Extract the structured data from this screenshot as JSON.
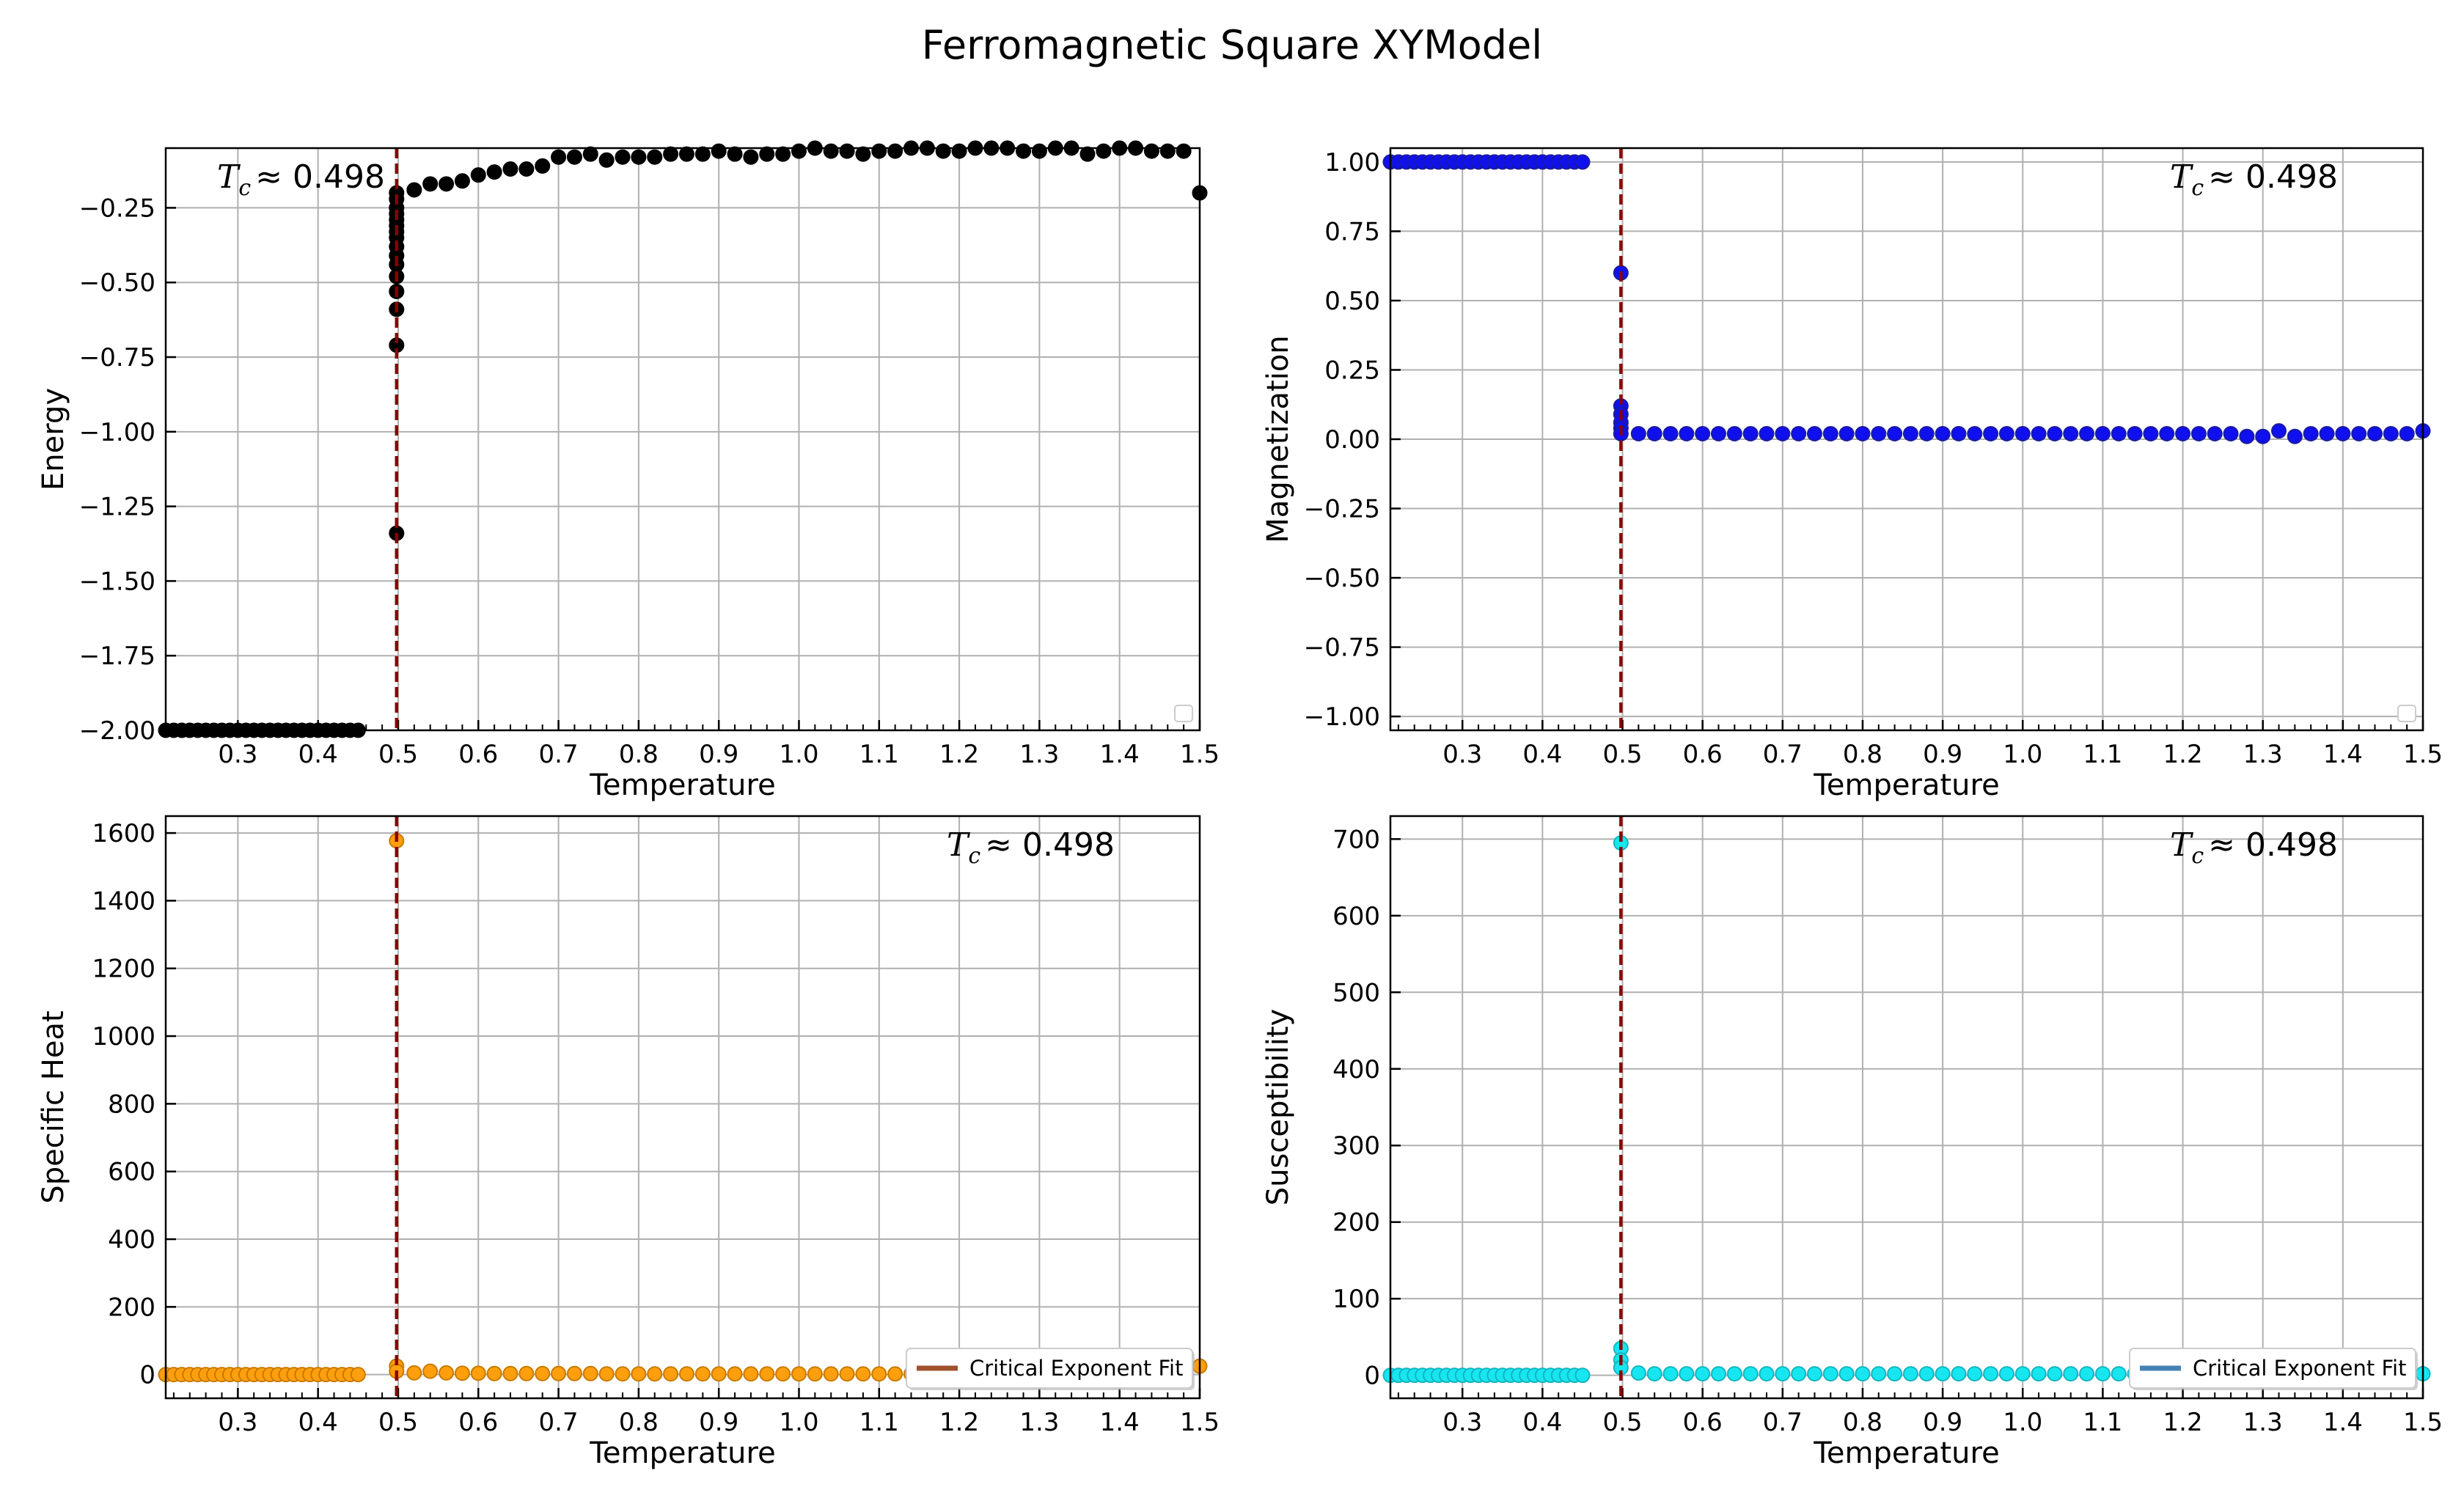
{
  "figure": {
    "title": "Ferromagnetic Square XYModel"
  },
  "chart_data": [
    {
      "type": "scatter",
      "id": "energy",
      "xlabel": "Temperature",
      "ylabel": "Energy",
      "xlim": [
        0.21,
        1.5
      ],
      "ylim": [
        -2.0,
        -0.05
      ],
      "xticks": [
        0.3,
        0.4,
        0.5,
        0.6,
        0.7,
        0.8,
        0.9,
        1.0,
        1.1,
        1.2,
        1.3,
        1.4,
        1.5
      ],
      "xtick_labels": [
        "0.3",
        "0.4",
        "0.5",
        "0.6",
        "0.7",
        "0.8",
        "0.9",
        "1.0",
        "1.1",
        "1.2",
        "1.3",
        "1.4",
        "1.5"
      ],
      "yticks": [
        -2.0,
        -1.75,
        -1.5,
        -1.25,
        -1.0,
        -0.75,
        -0.5,
        -0.25
      ],
      "ytick_labels": [
        "−2.00",
        "−1.75",
        "−1.50",
        "−1.25",
        "−1.00",
        "−0.75",
        "−0.50",
        "−0.25"
      ],
      "grid": true,
      "tc_line": 0.498,
      "annotation": {
        "prefix": "T",
        "sub": "c",
        "text": "≈  0.498",
        "placement": "top-left"
      },
      "legend": {
        "placement": "bottom-right",
        "entries": []
      },
      "marker_color": "#000000",
      "marker_edge": "#000000",
      "series": [
        {
          "x": [
            0.21,
            0.22,
            0.23,
            0.24,
            0.25,
            0.26,
            0.27,
            0.28,
            0.29,
            0.3,
            0.31,
            0.32,
            0.33,
            0.34,
            0.35,
            0.36,
            0.37,
            0.38,
            0.39,
            0.4,
            0.41,
            0.42,
            0.43,
            0.44,
            0.45,
            0.498,
            0.498,
            0.498,
            0.498,
            0.498,
            0.498,
            0.498,
            0.498,
            0.498,
            0.498,
            0.498,
            0.498,
            0.498,
            0.498,
            0.498,
            0.498,
            0.52,
            0.54,
            0.56,
            0.58,
            0.6,
            0.62,
            0.64,
            0.66,
            0.68,
            0.7,
            0.72,
            0.74,
            0.76,
            0.78,
            0.8,
            0.82,
            0.84,
            0.86,
            0.88,
            0.9,
            0.92,
            0.94,
            0.96,
            0.98,
            1.0,
            1.02,
            1.04,
            1.06,
            1.08,
            1.1,
            1.12,
            1.14,
            1.16,
            1.18,
            1.2,
            1.22,
            1.24,
            1.26,
            1.28,
            1.3,
            1.32,
            1.34,
            1.36,
            1.38,
            1.4,
            1.42,
            1.44,
            1.46,
            1.48,
            1.5
          ],
          "y": [
            -2.0,
            -2.0,
            -2.0,
            -2.0,
            -2.0,
            -2.0,
            -2.0,
            -2.0,
            -2.0,
            -2.0,
            -2.0,
            -2.0,
            -2.0,
            -2.0,
            -2.0,
            -2.0,
            -2.0,
            -2.0,
            -2.0,
            -2.0,
            -2.0,
            -2.0,
            -2.0,
            -2.0,
            -2.0,
            -1.34,
            -0.71,
            -0.59,
            -0.53,
            -0.48,
            -0.44,
            -0.41,
            -0.38,
            -0.35,
            -0.33,
            -0.31,
            -0.29,
            -0.27,
            -0.25,
            -0.22,
            -0.2,
            -0.19,
            -0.17,
            -0.17,
            -0.16,
            -0.14,
            -0.13,
            -0.12,
            -0.12,
            -0.11,
            -0.08,
            -0.08,
            -0.07,
            -0.09,
            -0.08,
            -0.08,
            -0.08,
            -0.07,
            -0.07,
            -0.07,
            -0.06,
            -0.07,
            -0.08,
            -0.07,
            -0.07,
            -0.06,
            -0.05,
            -0.06,
            -0.06,
            -0.07,
            -0.06,
            -0.06,
            -0.05,
            -0.05,
            -0.06,
            -0.06,
            -0.05,
            -0.05,
            -0.05,
            -0.06,
            -0.06,
            -0.05,
            -0.05,
            -0.07,
            -0.06,
            -0.05,
            -0.05,
            -0.06,
            -0.06,
            -0.06,
            -0.2
          ]
        }
      ]
    },
    {
      "type": "scatter",
      "id": "magnetization",
      "xlabel": "Temperature",
      "ylabel": "Magnetization",
      "xlim": [
        0.21,
        1.5
      ],
      "ylim": [
        -1.05,
        1.05
      ],
      "xticks": [
        0.3,
        0.4,
        0.5,
        0.6,
        0.7,
        0.8,
        0.9,
        1.0,
        1.1,
        1.2,
        1.3,
        1.4,
        1.5
      ],
      "xtick_labels": [
        "0.3",
        "0.4",
        "0.5",
        "0.6",
        "0.7",
        "0.8",
        "0.9",
        "1.0",
        "1.1",
        "1.2",
        "1.3",
        "1.4",
        "1.5"
      ],
      "yticks": [
        -1.0,
        -0.75,
        -0.5,
        -0.25,
        0.0,
        0.25,
        0.5,
        0.75,
        1.0
      ],
      "ytick_labels": [
        "−1.00",
        "−0.75",
        "−0.50",
        "−0.25",
        "0.00",
        "0.25",
        "0.50",
        "0.75",
        "1.00"
      ],
      "grid": true,
      "tc_line": 0.498,
      "annotation": {
        "prefix": "T",
        "sub": "c",
        "text": "≈  0.498",
        "placement": "top-right"
      },
      "legend": {
        "placement": "bottom-right",
        "entries": []
      },
      "marker_color": "#1010ee",
      "marker_edge": "#1a1aa0",
      "series": [
        {
          "x": [
            0.21,
            0.22,
            0.23,
            0.24,
            0.25,
            0.26,
            0.27,
            0.28,
            0.29,
            0.3,
            0.31,
            0.32,
            0.33,
            0.34,
            0.35,
            0.36,
            0.37,
            0.38,
            0.39,
            0.4,
            0.41,
            0.42,
            0.43,
            0.44,
            0.45,
            0.498,
            0.498,
            0.498,
            0.498,
            0.498,
            0.498,
            0.52,
            0.54,
            0.56,
            0.58,
            0.6,
            0.62,
            0.64,
            0.66,
            0.68,
            0.7,
            0.72,
            0.74,
            0.76,
            0.78,
            0.8,
            0.82,
            0.84,
            0.86,
            0.88,
            0.9,
            0.92,
            0.94,
            0.96,
            0.98,
            1.0,
            1.02,
            1.04,
            1.06,
            1.08,
            1.1,
            1.12,
            1.14,
            1.16,
            1.18,
            1.2,
            1.22,
            1.24,
            1.26,
            1.28,
            1.3,
            1.32,
            1.34,
            1.36,
            1.38,
            1.4,
            1.42,
            1.44,
            1.46,
            1.48,
            1.5
          ],
          "y": [
            1.0,
            1.0,
            1.0,
            1.0,
            1.0,
            1.0,
            1.0,
            1.0,
            1.0,
            1.0,
            1.0,
            1.0,
            1.0,
            1.0,
            1.0,
            1.0,
            1.0,
            1.0,
            1.0,
            1.0,
            1.0,
            1.0,
            1.0,
            1.0,
            1.0,
            0.6,
            0.12,
            0.09,
            0.06,
            0.04,
            0.02,
            0.02,
            0.02,
            0.02,
            0.02,
            0.02,
            0.02,
            0.02,
            0.02,
            0.02,
            0.02,
            0.02,
            0.02,
            0.02,
            0.02,
            0.02,
            0.02,
            0.02,
            0.02,
            0.02,
            0.02,
            0.02,
            0.02,
            0.02,
            0.02,
            0.02,
            0.02,
            0.02,
            0.02,
            0.02,
            0.02,
            0.02,
            0.02,
            0.02,
            0.02,
            0.02,
            0.02,
            0.02,
            0.02,
            0.01,
            0.01,
            0.03,
            0.01,
            0.02,
            0.02,
            0.02,
            0.02,
            0.02,
            0.02,
            0.02,
            0.03
          ]
        }
      ]
    },
    {
      "type": "scatter",
      "id": "specific-heat",
      "xlabel": "Temperature",
      "ylabel": "Specific Heat",
      "xlim": [
        0.21,
        1.5
      ],
      "ylim": [
        -70,
        1650
      ],
      "xticks": [
        0.3,
        0.4,
        0.5,
        0.6,
        0.7,
        0.8,
        0.9,
        1.0,
        1.1,
        1.2,
        1.3,
        1.4,
        1.5
      ],
      "xtick_labels": [
        "0.3",
        "0.4",
        "0.5",
        "0.6",
        "0.7",
        "0.8",
        "0.9",
        "1.0",
        "1.1",
        "1.2",
        "1.3",
        "1.4",
        "1.5"
      ],
      "yticks": [
        0,
        200,
        400,
        600,
        800,
        1000,
        1200,
        1400,
        1600
      ],
      "ytick_labels": [
        "0",
        "200",
        "400",
        "600",
        "800",
        "1000",
        "1200",
        "1400",
        "1600"
      ],
      "grid": true,
      "tc_line": 0.498,
      "annotation": {
        "prefix": "T",
        "sub": "c",
        "text": "≈  0.498",
        "placement": "top-right"
      },
      "legend": {
        "placement": "bottom-right",
        "entries": [
          {
            "label": "Critical Exponent Fit",
            "color": "#a0522d"
          }
        ]
      },
      "marker_color": "#ff9f0e",
      "marker_edge": "#c77a00",
      "series": [
        {
          "x": [
            0.21,
            0.22,
            0.23,
            0.24,
            0.25,
            0.26,
            0.27,
            0.28,
            0.29,
            0.3,
            0.31,
            0.32,
            0.33,
            0.34,
            0.35,
            0.36,
            0.37,
            0.38,
            0.39,
            0.4,
            0.41,
            0.42,
            0.43,
            0.44,
            0.45,
            0.498,
            0.498,
            0.498,
            0.52,
            0.54,
            0.56,
            0.58,
            0.6,
            0.62,
            0.64,
            0.66,
            0.68,
            0.7,
            0.72,
            0.74,
            0.76,
            0.78,
            0.8,
            0.82,
            0.84,
            0.86,
            0.88,
            0.9,
            0.92,
            0.94,
            0.96,
            0.98,
            1.0,
            1.02,
            1.04,
            1.06,
            1.08,
            1.1,
            1.12,
            1.14,
            1.16,
            1.18,
            1.2,
            1.22,
            1.24,
            1.26,
            1.28,
            1.3,
            1.32,
            1.34,
            1.36,
            1.38,
            1.4,
            1.42,
            1.44,
            1.46,
            1.48,
            1.5
          ],
          "y": [
            0,
            0,
            0,
            0,
            0,
            0,
            0,
            0,
            0,
            0,
            0,
            0,
            0,
            0,
            0,
            0,
            0,
            0,
            0,
            0,
            0,
            0,
            0,
            0,
            0,
            1577,
            25,
            10,
            5,
            10,
            5,
            4,
            4,
            3,
            3,
            3,
            3,
            3,
            3,
            3,
            2,
            2,
            2,
            2,
            2,
            2,
            2,
            2,
            2,
            2,
            2,
            2,
            2,
            2,
            2,
            2,
            2,
            2,
            2,
            2,
            2,
            2,
            2,
            2,
            2,
            2,
            2,
            2,
            2,
            2,
            2,
            2,
            2,
            2,
            2,
            2,
            2,
            25
          ]
        }
      ]
    },
    {
      "type": "scatter",
      "id": "susceptibility",
      "xlabel": "Temperature",
      "ylabel": "Susceptibility",
      "xlim": [
        0.21,
        1.5
      ],
      "ylim": [
        -30,
        730
      ],
      "xticks": [
        0.3,
        0.4,
        0.5,
        0.6,
        0.7,
        0.8,
        0.9,
        1.0,
        1.1,
        1.2,
        1.3,
        1.4,
        1.5
      ],
      "xtick_labels": [
        "0.3",
        "0.4",
        "0.5",
        "0.6",
        "0.7",
        "0.8",
        "0.9",
        "1.0",
        "1.1",
        "1.2",
        "1.3",
        "1.4",
        "1.5"
      ],
      "yticks": [
        0,
        100,
        200,
        300,
        400,
        500,
        600,
        700
      ],
      "ytick_labels": [
        "0",
        "100",
        "200",
        "300",
        "400",
        "500",
        "600",
        "700"
      ],
      "grid": true,
      "tc_line": 0.498,
      "annotation": {
        "prefix": "T",
        "sub": "c",
        "text": "≈  0.498",
        "placement": "top-right"
      },
      "legend": {
        "placement": "bottom-right",
        "entries": [
          {
            "label": "Critical Exponent Fit",
            "color": "#4682b4"
          }
        ]
      },
      "marker_color": "#17e6f0",
      "marker_edge": "#14b5c0",
      "series": [
        {
          "x": [
            0.21,
            0.22,
            0.23,
            0.24,
            0.25,
            0.26,
            0.27,
            0.28,
            0.29,
            0.3,
            0.31,
            0.32,
            0.33,
            0.34,
            0.35,
            0.36,
            0.37,
            0.38,
            0.39,
            0.4,
            0.41,
            0.42,
            0.43,
            0.44,
            0.45,
            0.498,
            0.498,
            0.498,
            0.498,
            0.52,
            0.54,
            0.56,
            0.58,
            0.6,
            0.62,
            0.64,
            0.66,
            0.68,
            0.7,
            0.72,
            0.74,
            0.76,
            0.78,
            0.8,
            0.82,
            0.84,
            0.86,
            0.88,
            0.9,
            0.92,
            0.94,
            0.96,
            0.98,
            1.0,
            1.02,
            1.04,
            1.06,
            1.08,
            1.1,
            1.12,
            1.14,
            1.16,
            1.18,
            1.2,
            1.22,
            1.24,
            1.26,
            1.28,
            1.3,
            1.32,
            1.34,
            1.36,
            1.38,
            1.4,
            1.42,
            1.44,
            1.46,
            1.48,
            1.5
          ],
          "y": [
            0,
            0,
            0,
            0,
            0,
            0,
            0,
            0,
            0,
            0,
            0,
            0,
            0,
            0,
            0,
            0,
            0,
            0,
            0,
            0,
            0,
            0,
            0,
            0,
            0,
            695,
            35,
            20,
            10,
            3,
            2,
            2,
            2,
            2,
            2,
            2,
            2,
            2,
            2,
            2,
            2,
            2,
            2,
            2,
            2,
            2,
            2,
            2,
            2,
            2,
            2,
            2,
            2,
            2,
            2,
            2,
            2,
            2,
            2,
            2,
            2,
            2,
            2,
            2,
            2,
            2,
            2,
            2,
            2,
            2,
            2,
            2,
            2,
            2,
            2,
            2,
            2,
            2,
            2
          ]
        }
      ]
    }
  ]
}
